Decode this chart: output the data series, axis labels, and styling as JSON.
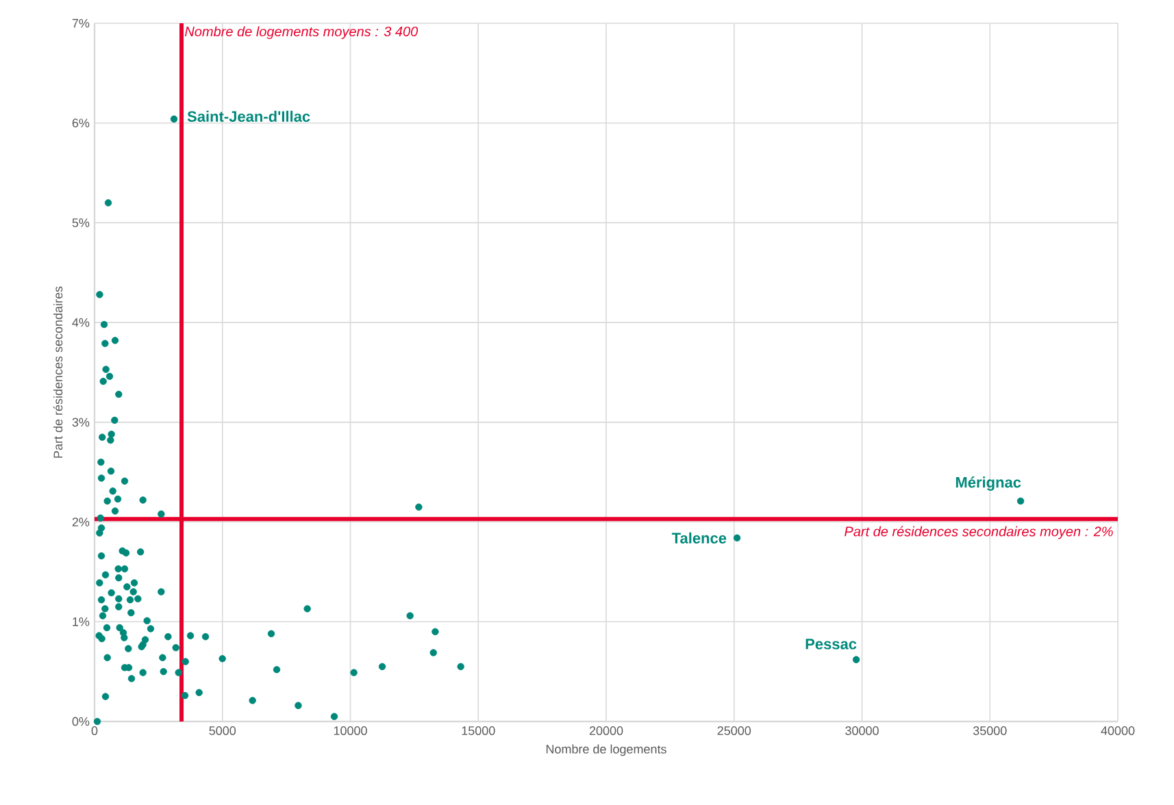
{
  "chart_data": {
    "type": "scatter",
    "xlabel": "Nombre de logements",
    "ylabel": "Part de résidences secondaires",
    "marker": "circle",
    "grid": true,
    "xlim": [
      0,
      40000
    ],
    "ylim": [
      0,
      7
    ],
    "xticks": [
      0,
      5000,
      10000,
      15000,
      20000,
      25000,
      30000,
      35000,
      40000
    ],
    "yticks": [
      {
        "value": 0,
        "label": "0%"
      },
      {
        "value": 1,
        "label": "1%"
      },
      {
        "value": 2,
        "label": "2%"
      },
      {
        "value": 3,
        "label": "3%"
      },
      {
        "value": 4,
        "label": "4%"
      },
      {
        "value": 5,
        "label": "5%"
      },
      {
        "value": 6,
        "label": "6%"
      },
      {
        "value": 7,
        "label": "7%"
      }
    ],
    "series": [
      {
        "color": "#00897b",
        "x": [
          536,
          200,
          375,
          410,
          803,
          445,
          340,
          590,
          945,
          785,
          300,
          660,
          625,
          250,
          643,
          268,
          1178,
          714,
          910,
          500,
          1892,
          803,
          232,
          2606,
          268,
          197,
          268,
          1089,
          1232,
          1798,
          428,
          928,
          1178,
          945,
          197,
          1553,
          1267,
          660,
          1518,
          268,
          945,
          1392,
          1696,
          2606,
          410,
          945,
          321,
          1428,
          2053,
          482,
          982,
          2195,
          178,
          285,
          1125,
          1160,
          1981,
          1892,
          2874,
          3749,
          4338,
          1321,
          1839,
          3178,
          500,
          2660,
          3553,
          4998,
          1178,
          1339,
          1892,
          2696,
          3285,
          1446,
          428,
          3535,
          4087,
          6175,
          107,
          8317,
          6908,
          7122,
          7963,
          9371,
          10137,
          11246,
          12333,
          13317,
          13245,
          14315,
          12674,
          3106,
          36200,
          25115,
          29774
        ],
        "values": [
          5.2,
          4.28,
          3.98,
          3.79,
          3.82,
          3.53,
          3.41,
          3.46,
          3.28,
          3.02,
          2.85,
          2.88,
          2.82,
          2.6,
          2.51,
          2.44,
          2.41,
          2.31,
          2.23,
          2.21,
          2.22,
          2.11,
          2.04,
          2.08,
          1.94,
          1.89,
          1.66,
          1.71,
          1.69,
          1.7,
          1.47,
          1.53,
          1.53,
          1.44,
          1.39,
          1.39,
          1.35,
          1.29,
          1.3,
          1.22,
          1.23,
          1.22,
          1.23,
          1.3,
          1.13,
          1.15,
          1.06,
          1.09,
          1.01,
          0.94,
          0.94,
          0.93,
          0.86,
          0.83,
          0.89,
          0.84,
          0.82,
          0.77,
          0.85,
          0.86,
          0.85,
          0.73,
          0.75,
          0.74,
          0.64,
          0.64,
          0.6,
          0.63,
          0.54,
          0.54,
          0.49,
          0.5,
          0.49,
          0.43,
          0.25,
          0.26,
          0.29,
          0.21,
          0.0,
          1.13,
          0.88,
          0.52,
          0.16,
          0.05,
          0.49,
          0.55,
          1.06,
          0.9,
          0.69,
          0.55,
          2.15,
          6.04,
          2.21,
          1.84,
          0.62
        ]
      }
    ],
    "annotations": [
      {
        "text": "Saint-Jean-d'Illac",
        "x": 3106,
        "y": 6.04
      },
      {
        "text": "Mérignac",
        "x": 36200,
        "y": 2.21
      },
      {
        "text": "Talence",
        "x": 25115,
        "y": 1.84
      },
      {
        "text": "Pessac",
        "x": 29774,
        "y": 0.62
      }
    ],
    "ref_lines": [
      {
        "axis": "x",
        "value": 3400,
        "label": "Nombre de logements moyens : 3 400",
        "color": "#e8002d"
      },
      {
        "axis": "y",
        "value": 2.03,
        "label": "Part de résidences secondaires moyen : 2%",
        "color": "#e8002d"
      }
    ]
  }
}
